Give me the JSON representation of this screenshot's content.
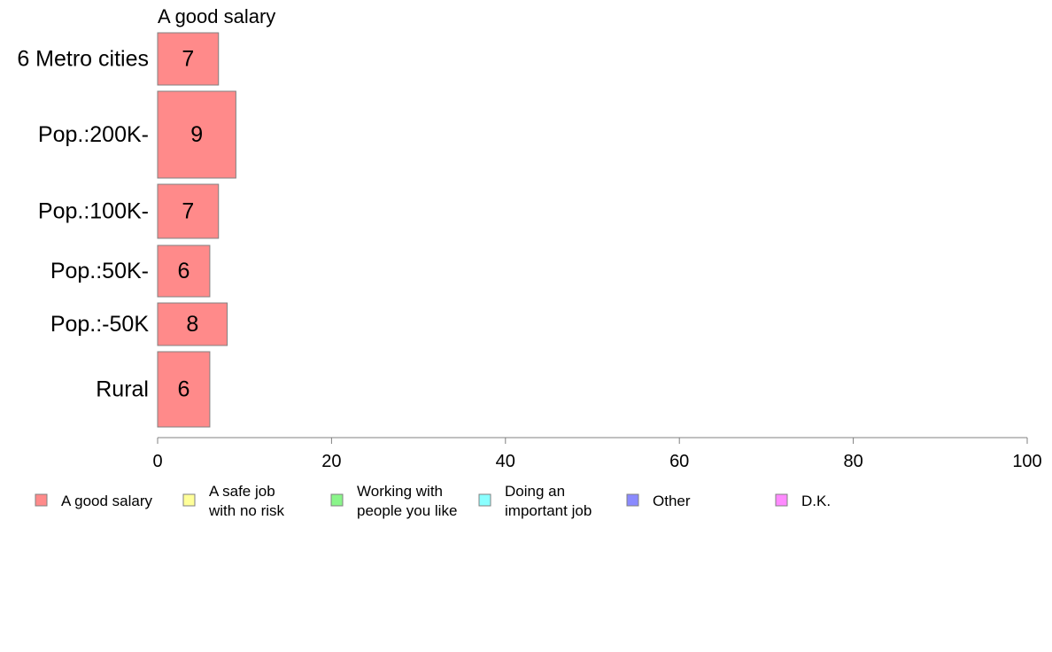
{
  "chart_data": {
    "type": "bar",
    "orientation": "horizontal",
    "title": "A good salary",
    "categories": [
      "6 Metro cities",
      "Pop.:200K-",
      "Pop.:100K-",
      "Pop.:50K-",
      "Pop.:-50K",
      "Rural"
    ],
    "series": [
      {
        "name": "A good salary",
        "values": [
          7,
          9,
          7,
          6,
          8,
          6
        ]
      }
    ],
    "bar_labels": [
      "7",
      "9",
      "7",
      "6",
      "8",
      "6"
    ],
    "xlim": [
      0,
      100
    ],
    "xticks": [
      0,
      20,
      40,
      60,
      80,
      100
    ],
    "xtick_labels": [
      "0",
      "20",
      "40",
      "60",
      "80",
      "100"
    ],
    "grid": false,
    "legend_position": "bottom",
    "legend": [
      {
        "label_lines": [
          "A good salary"
        ],
        "color": "#ff8a8a"
      },
      {
        "label_lines": [
          "A safe job",
          "with no risk"
        ],
        "color": "#ffff99"
      },
      {
        "label_lines": [
          "Working with",
          "people you like"
        ],
        "color": "#8af58a"
      },
      {
        "label_lines": [
          "Doing an",
          "important job"
        ],
        "color": "#8affff"
      },
      {
        "label_lines": [
          "Other"
        ],
        "color": "#8a8aff"
      },
      {
        "label_lines": [
          "D.K."
        ],
        "color": "#ff8aff"
      }
    ],
    "colors": {
      "bar_fill": "#ff8a8a",
      "bar_stroke": "#808080",
      "axis": "#808080"
    }
  }
}
